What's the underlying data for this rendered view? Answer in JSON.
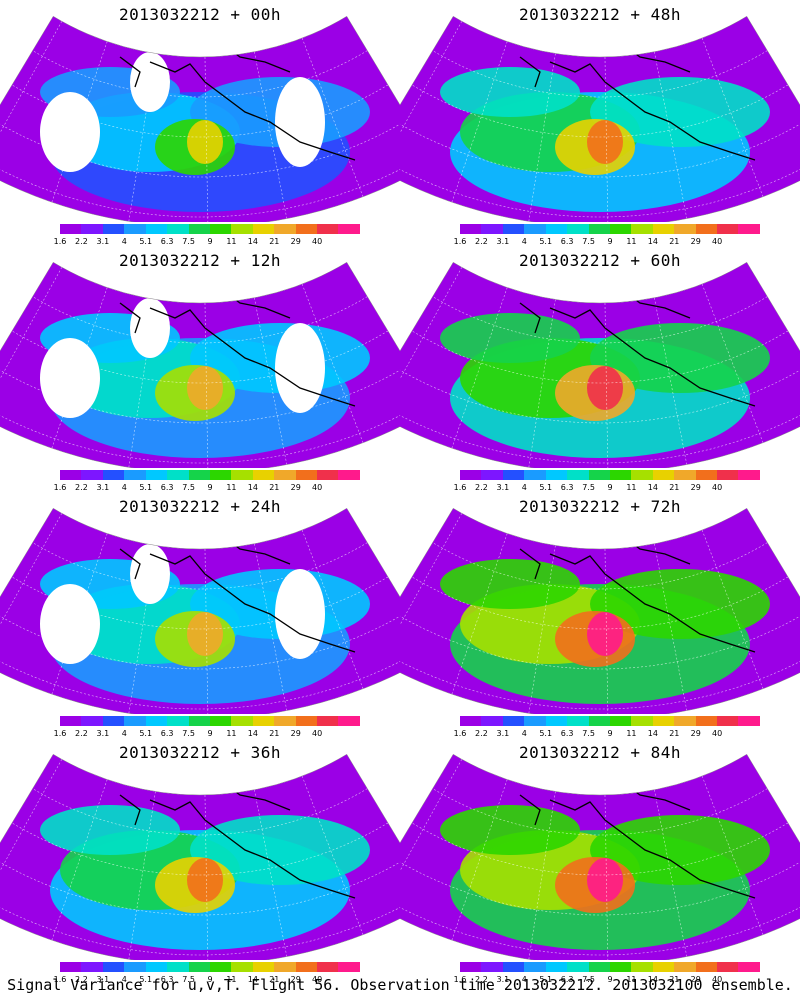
{
  "panels": [
    {
      "title": "2013032212 + 00h",
      "level": 1
    },
    {
      "title": "2013032212 + 48h",
      "level": 3
    },
    {
      "title": "2013032212 + 12h",
      "level": 2
    },
    {
      "title": "2013032212 + 60h",
      "level": 4
    },
    {
      "title": "2013032212 + 24h",
      "level": 2
    },
    {
      "title": "2013032212 + 72h",
      "level": 5
    },
    {
      "title": "2013032212 + 36h",
      "level": 3
    },
    {
      "title": "2013032212 + 84h",
      "level": 5
    }
  ],
  "colorbar": {
    "ticks": [
      "1.6",
      "2.2",
      "3.1",
      "4",
      "5.1",
      "6.3",
      "7.5",
      "9",
      "11",
      "14",
      "21",
      "29",
      "40"
    ],
    "colors": [
      "#9b00e6",
      "#7d16ff",
      "#2450ff",
      "#1a9bff",
      "#00c8ff",
      "#00e0c8",
      "#15d34a",
      "#2cd600",
      "#a6e000",
      "#e8d100",
      "#f0a82a",
      "#f26f1c",
      "#f0304b",
      "#ff1a8c"
    ]
  },
  "footer": "Signal Variance for u,v,T. Flight 56. Observation time 2013032212. 2013032100 ensemble."
}
